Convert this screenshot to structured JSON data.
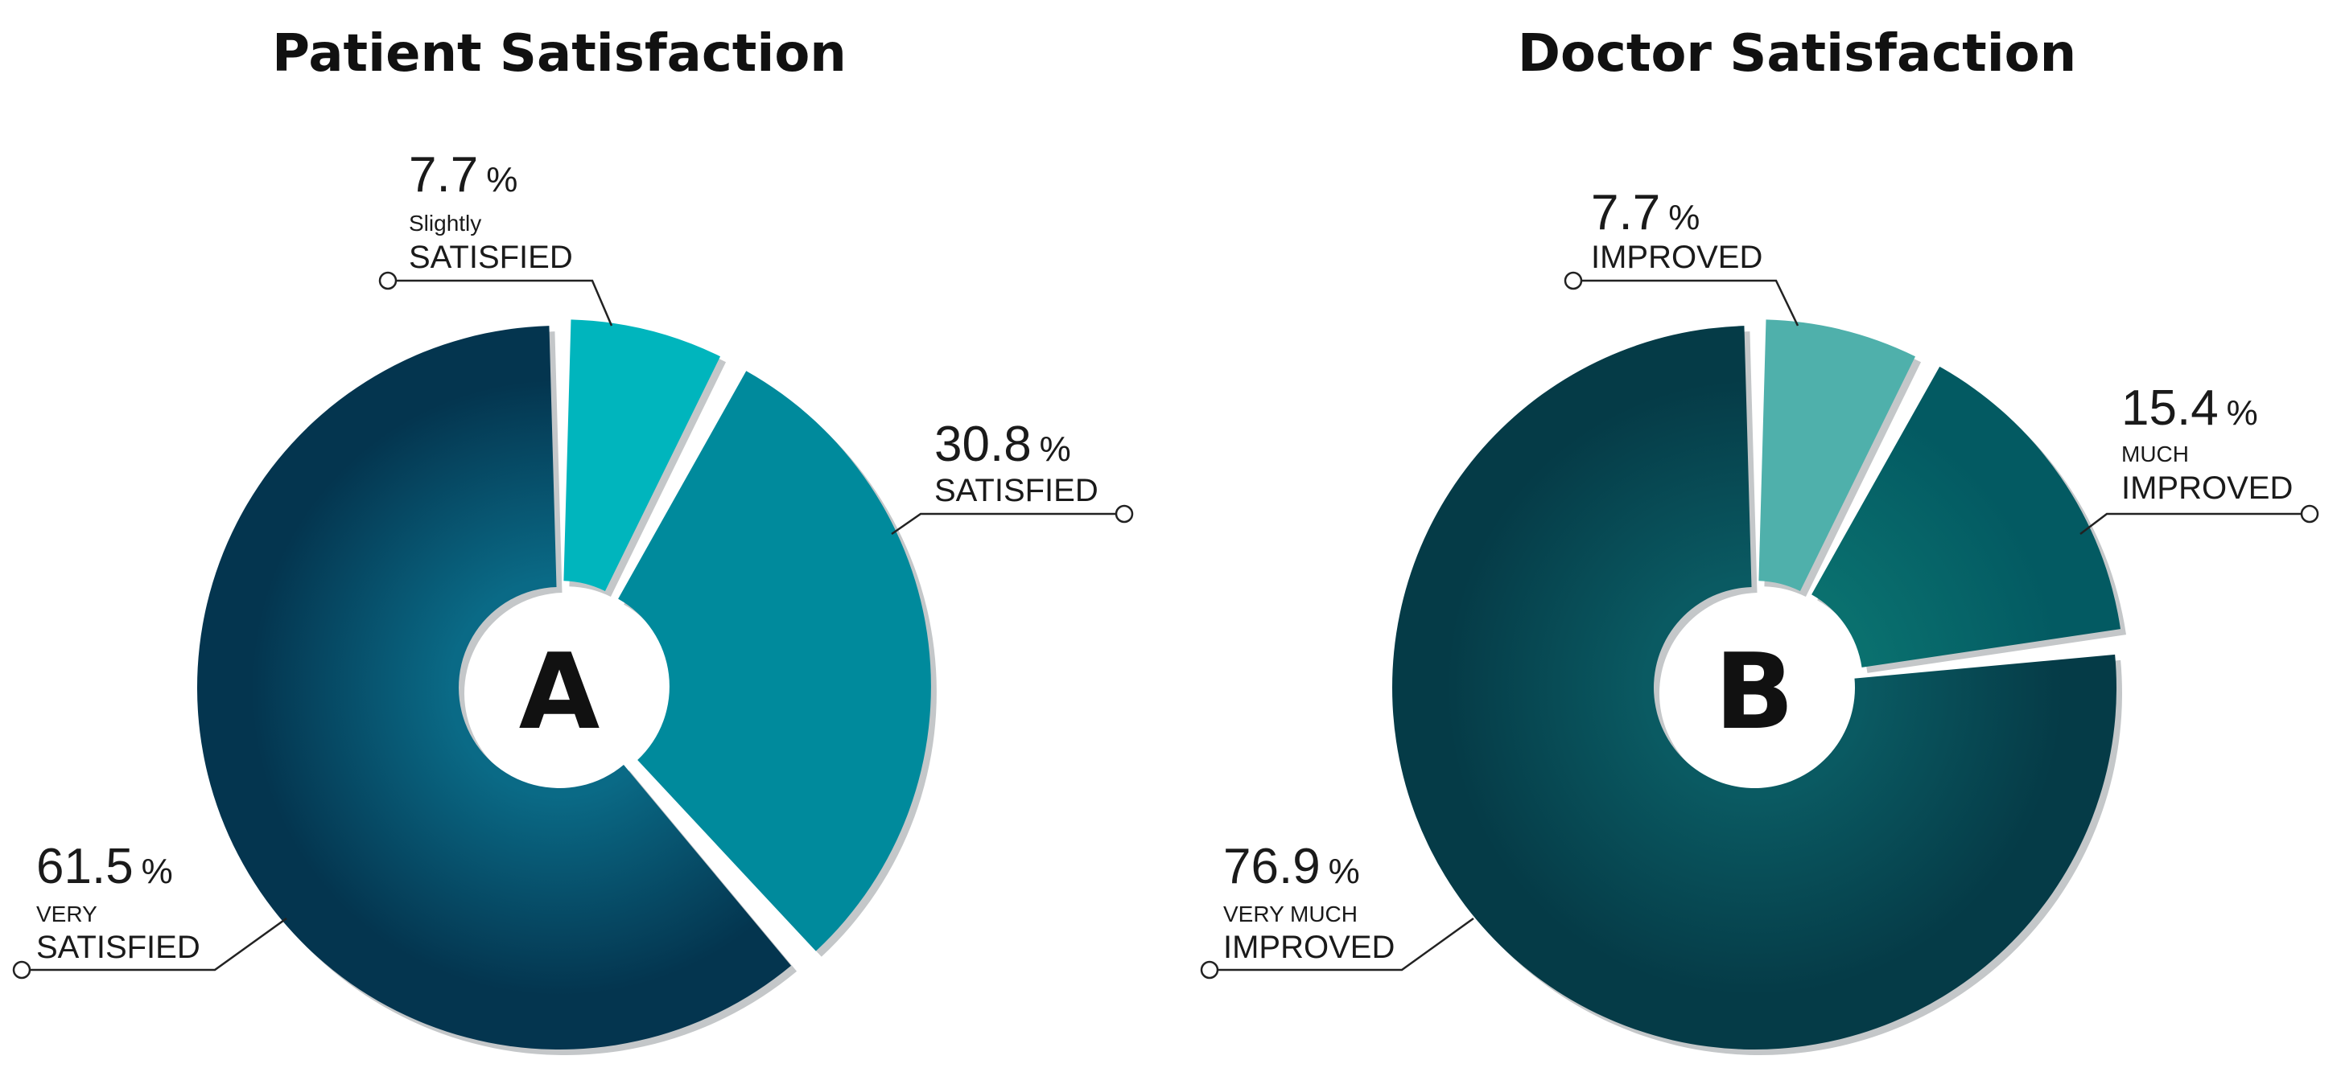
{
  "chart_data": [
    {
      "type": "pie",
      "title": "Patient Satisfaction",
      "center_label": "A",
      "slices": [
        {
          "value": 7.7,
          "pct_text": "7.7",
          "unit": "%",
          "label_small": "Slightly",
          "label_big": "SATISFIED",
          "color": "#00b5bd"
        },
        {
          "value": 30.8,
          "pct_text": "30.8",
          "unit": "%",
          "label_small": "",
          "label_big": "SATISFIED",
          "color": "#008a9c"
        },
        {
          "value": 61.5,
          "pct_text": "61.5",
          "unit": "%",
          "label_small": "VERY",
          "label_big": "SATISFIED",
          "color": "#04354f",
          "gradient_inner": "#0a6a86"
        }
      ]
    },
    {
      "type": "pie",
      "title": "Doctor Satisfaction",
      "center_label": "B",
      "slices": [
        {
          "value": 7.7,
          "pct_text": "7.7",
          "unit": "%",
          "label_small": "",
          "label_big": "IMPROVED",
          "color": "#4fb0ab"
        },
        {
          "value": 15.4,
          "pct_text": "15.4",
          "unit": "%",
          "label_small": "MUCH",
          "label_big": "IMPROVED",
          "color": "#035a62",
          "gradient_inner": "#0a716f"
        },
        {
          "value": 76.9,
          "pct_text": "76.9",
          "unit": "%",
          "label_small": "VERY MUCH",
          "label_big": "IMPROVED",
          "color": "#053b47",
          "gradient_inner": "#0a5a62"
        }
      ]
    }
  ]
}
